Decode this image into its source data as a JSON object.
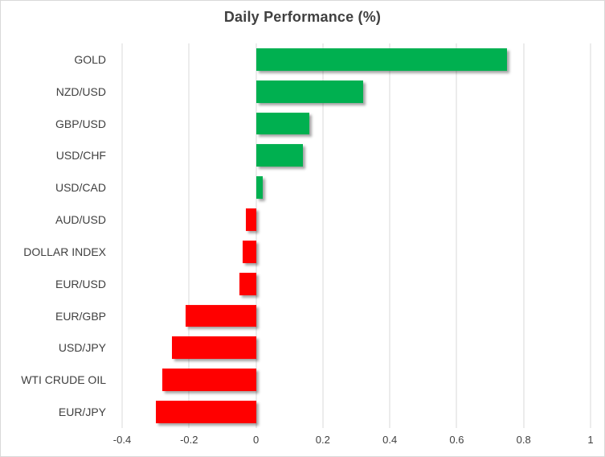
{
  "chart_data": {
    "type": "bar",
    "orientation": "horizontal",
    "title": "Daily Performance (%)",
    "xlabel": "",
    "ylabel": "",
    "categories": [
      "GOLD",
      "NZD/USD",
      "GBP/USD",
      "USD/CHF",
      "USD/CAD",
      "AUD/USD",
      "DOLLAR INDEX",
      "EUR/USD",
      "EUR/GBP",
      "USD/JPY",
      "WTI CRUDE OIL",
      "EUR/JPY"
    ],
    "values": [
      0.75,
      0.32,
      0.16,
      0.14,
      0.02,
      -0.03,
      -0.04,
      -0.05,
      -0.21,
      -0.25,
      -0.28,
      -0.3
    ],
    "xlim": [
      -0.4,
      1.0
    ],
    "xticks": [
      -0.4,
      -0.2,
      0,
      0.2,
      0.4,
      0.6,
      0.8,
      1
    ],
    "xtick_labels": [
      "-0.4",
      "-0.2",
      "0",
      "0.2",
      "0.4",
      "0.6",
      "0.8",
      "1"
    ],
    "grid": "vertical",
    "legend": "none",
    "colors": {
      "positive": "#00B050",
      "negative": "#FF0000",
      "gridline": "#D9D9D9",
      "text": "#404040",
      "border": "#D9D9D9",
      "background": "#FFFFFF"
    }
  }
}
